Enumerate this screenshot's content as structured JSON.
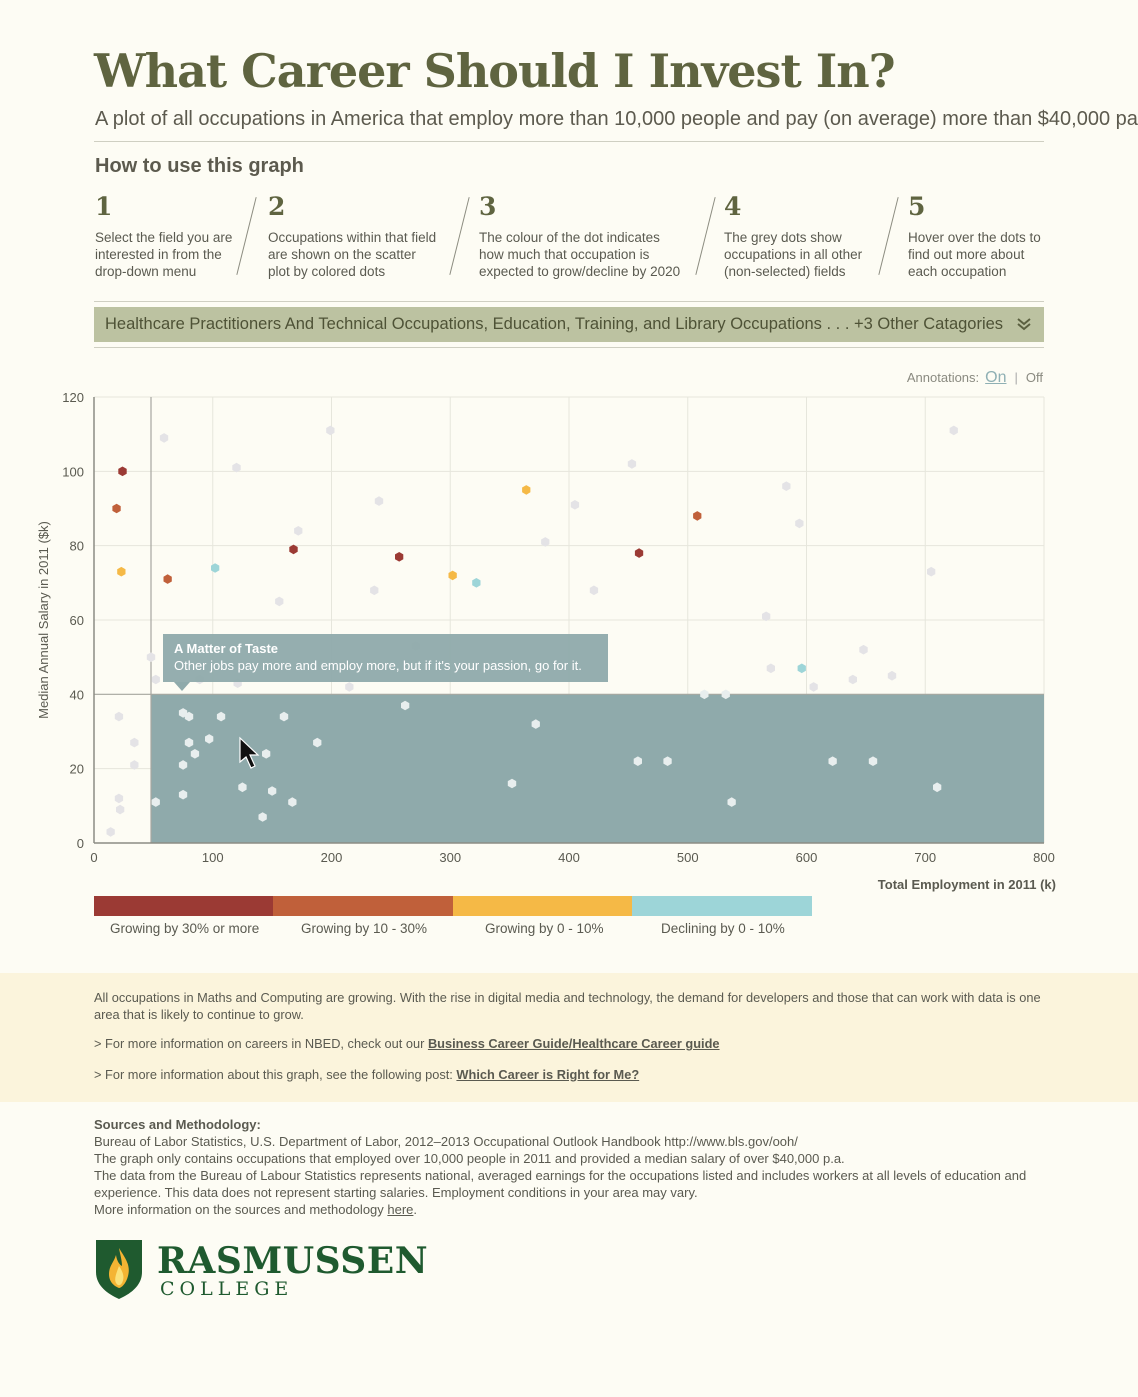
{
  "header": {
    "title": "What Career Should I Invest In?",
    "subtitle": "A plot of all occupations in America that employ more than 10,000 people and pay (on average) more than $40,000 pa"
  },
  "howto": {
    "heading": "How to use this graph",
    "steps": [
      {
        "num": "1",
        "text": "Select the field you are interested in from the drop-down menu"
      },
      {
        "num": "2",
        "text": "Occupations within that field are shown on the scatter plot by colored dots"
      },
      {
        "num": "3",
        "text": "The colour of the dot indicates how much that occupation is expected to grow/decline by 2020"
      },
      {
        "num": "4",
        "text": "The grey dots show occupations in all other (non-selected) fields"
      },
      {
        "num": "5",
        "text": "Hover over the dots to find out more about each occupation"
      }
    ]
  },
  "dropdown": {
    "selected": "Healthcare Practitioners And Technical Occupations, Education, Training, and Library Occupations . . . +3 Other Catagories",
    "chevron_icon": "double-chevron-down-icon"
  },
  "annotations_toggle": {
    "label": "Annotations:",
    "on": "On",
    "separator": "|",
    "off": "Off"
  },
  "tooltip": {
    "title": "A Matter of Taste",
    "text": "Other jobs pay more and employ more, but if it's your passion, go for it."
  },
  "colors": {
    "growing_30_plus": "#9b3a34",
    "growing_10_30": "#c0603a",
    "growing_0_10": "#f5b946",
    "declining_0_10": "#9dd5d8",
    "grey": "#e4e3e6",
    "region": "#8faaab"
  },
  "chart_data": {
    "type": "scatter",
    "xlabel": "Total Employment in 2011 (k)",
    "ylabel": "Median Annual Salary in 2011 ($k)",
    "xlim": [
      0,
      800
    ],
    "ylim": [
      0,
      120
    ],
    "xticks": [
      0,
      100,
      200,
      300,
      400,
      500,
      600,
      700,
      800
    ],
    "yticks": [
      0,
      20,
      40,
      60,
      80,
      100,
      120
    ],
    "grid": true,
    "highlight_region": {
      "x": [
        48,
        800
      ],
      "y": [
        0,
        40
      ]
    },
    "legend": [
      {
        "key": "growing_30_plus",
        "label": "Growing by 30% or more"
      },
      {
        "key": "growing_10_30",
        "label": "Growing by 10 - 30%"
      },
      {
        "key": "growing_0_10",
        "label": "Growing by 0 - 10%"
      },
      {
        "key": "declining_0_10",
        "label": "Declining by 0 - 10%"
      }
    ],
    "series": [
      {
        "key": "growing_30_plus",
        "points": [
          [
            24,
            100
          ],
          [
            168,
            79
          ],
          [
            257,
            77
          ],
          [
            459,
            78
          ]
        ]
      },
      {
        "key": "growing_10_30",
        "points": [
          [
            19,
            90
          ],
          [
            62,
            71
          ],
          [
            508,
            88
          ]
        ]
      },
      {
        "key": "growing_0_10",
        "points": [
          [
            23,
            73
          ],
          [
            302,
            72
          ],
          [
            364,
            95
          ]
        ]
      },
      {
        "key": "declining_0_10",
        "points": [
          [
            102,
            74
          ],
          [
            322,
            70
          ],
          [
            596,
            47
          ]
        ]
      },
      {
        "key": "grey",
        "points": [
          [
            59,
            109
          ],
          [
            199,
            111
          ],
          [
            724,
            111
          ],
          [
            120,
            101
          ],
          [
            453,
            102
          ],
          [
            240,
            92
          ],
          [
            405,
            91
          ],
          [
            583,
            96
          ],
          [
            172,
            84
          ],
          [
            380,
            81
          ],
          [
            594,
            86
          ],
          [
            236,
            68
          ],
          [
            421,
            68
          ],
          [
            156,
            65
          ],
          [
            705,
            73
          ],
          [
            566,
            61
          ],
          [
            48,
            50
          ],
          [
            52,
            44
          ],
          [
            89,
            44
          ],
          [
            121,
            43
          ],
          [
            215,
            42
          ],
          [
            570,
            47
          ],
          [
            648,
            52
          ],
          [
            606,
            42
          ],
          [
            639,
            44
          ],
          [
            672,
            45
          ],
          [
            271,
            53
          ],
          [
            514,
            40
          ],
          [
            532,
            40
          ],
          [
            21,
            34
          ],
          [
            75,
            35
          ],
          [
            80,
            34
          ],
          [
            107,
            34
          ],
          [
            160,
            34
          ],
          [
            262,
            37
          ],
          [
            372,
            32
          ],
          [
            34,
            27
          ],
          [
            80,
            27
          ],
          [
            97,
            28
          ],
          [
            188,
            27
          ],
          [
            85,
            24
          ],
          [
            145,
            24
          ],
          [
            34,
            21
          ],
          [
            75,
            21
          ],
          [
            458,
            22
          ],
          [
            483,
            22
          ],
          [
            622,
            22
          ],
          [
            656,
            22
          ],
          [
            21,
            12
          ],
          [
            22,
            9
          ],
          [
            52,
            11
          ],
          [
            75,
            13
          ],
          [
            125,
            15
          ],
          [
            150,
            14
          ],
          [
            167,
            11
          ],
          [
            352,
            16
          ],
          [
            537,
            11
          ],
          [
            710,
            15
          ],
          [
            14,
            3
          ],
          [
            142,
            7
          ]
        ]
      }
    ]
  },
  "info": {
    "paragraph": "All occupations in Maths and Computing are growing.  With the rise in digital media and technology, the demand for developers and those that can work with data is one area that is likely to continue to grow.",
    "link1_prefix": "> For more information on careers in NBED, check out our ",
    "link1_text": "Business Career Guide/Healthcare Career guide",
    "link2_prefix": "> For more information about this graph, see the following post:  ",
    "link2_text": "Which Career is Right for Me?"
  },
  "sources": {
    "heading": "Sources and Methodology:",
    "line1": "Bureau of Labor Statistics, U.S. Department of Labor, 2012–2013 Occupational Outlook Handbook http://www.bls.gov/ooh/",
    "line2": "The graph only contains occupations that employed over 10,000 people in 2011 and provided a median salary of over $40,000 p.a.",
    "line3": "The data from the Bureau of Labour Statistics represents national, averaged earnings for the occupations listed and includes workers at all levels of education and experience. This data does not represent starting salaries. Employment conditions in your area may vary.",
    "line4_prefix": "More information on the sources and methodology ",
    "line4_link": "here",
    "line4_suffix": "."
  },
  "logo": {
    "name": "RASMUSSEN",
    "sub": "COLLEGE",
    "icon": "flame-shield-icon"
  }
}
